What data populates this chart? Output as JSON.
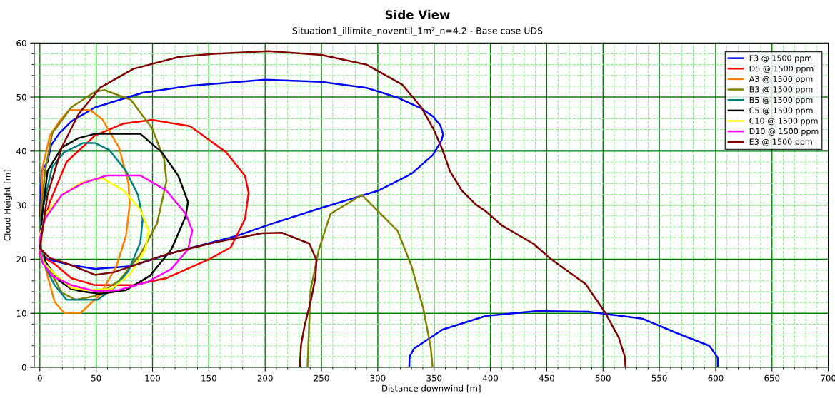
{
  "chart_data": {
    "type": "line",
    "title": "Side View",
    "subtitle": "Situation1_illimite_noventil_1m²_n=4.2 - Base case UDS",
    "xlabel": "Distance downwind [m]",
    "ylabel": "Cloud Height [m]",
    "xlim": [
      -5,
      700
    ],
    "ylim": [
      0,
      60
    ],
    "xticks": [
      0,
      {
        "value": 10,
        "label": null
      },
      {
        "value": 20,
        "label": null
      },
      {
        "value": 30,
        "label": null
      },
      {
        "value": 40,
        "label": null
      },
      50,
      {
        "value": 60,
        "label": null
      },
      {
        "value": 70,
        "label": null
      },
      {
        "value": 80,
        "label": null
      },
      {
        "value": 90,
        "label": null
      },
      100,
      {
        "value": 110,
        "label": null
      },
      {
        "value": 120,
        "label": null
      },
      {
        "value": 130,
        "label": null
      },
      {
        "value": 140,
        "label": null
      },
      150,
      {
        "value": 160,
        "label": null
      },
      {
        "value": 170,
        "label": null
      },
      {
        "value": 180,
        "label": null
      },
      {
        "value": 190,
        "label": null
      },
      200,
      {
        "value": 210,
        "label": null
      },
      {
        "value": 220,
        "label": null
      },
      {
        "value": 230,
        "label": null
      },
      {
        "value": 240,
        "label": null
      },
      250,
      {
        "value": 260,
        "label": null
      },
      {
        "value": 270,
        "label": null
      },
      {
        "value": 280,
        "label": null
      },
      {
        "value": 290,
        "label": null
      },
      300,
      {
        "value": 310,
        "label": null
      },
      {
        "value": 320,
        "label": null
      },
      {
        "value": 330,
        "label": null
      },
      {
        "value": 340,
        "label": null
      },
      350,
      {
        "value": 360,
        "label": null
      },
      {
        "value": 370,
        "label": null
      },
      {
        "value": 380,
        "label": null
      },
      {
        "value": 390,
        "label": null
      },
      400,
      {
        "value": 410,
        "label": null
      },
      {
        "value": 420,
        "label": null
      },
      {
        "value": 430,
        "label": null
      },
      {
        "value": 440,
        "label": null
      },
      450,
      {
        "value": 460,
        "label": null
      },
      {
        "value": 470,
        "label": null
      },
      {
        "value": 480,
        "label": null
      },
      {
        "value": 490,
        "label": null
      },
      500,
      {
        "value": 510,
        "label": null
      },
      {
        "value": 520,
        "label": null
      },
      {
        "value": 530,
        "label": null
      },
      {
        "value": 540,
        "label": null
      },
      550,
      {
        "value": 560,
        "label": null
      },
      {
        "value": 570,
        "label": null
      },
      {
        "value": 580,
        "label": null
      },
      {
        "value": 590,
        "label": null
      },
      600,
      {
        "value": 610,
        "label": null
      },
      {
        "value": 620,
        "label": null
      },
      {
        "value": 630,
        "label": null
      },
      {
        "value": 640,
        "label": null
      },
      650,
      {
        "value": 660,
        "label": null
      },
      {
        "value": 670,
        "label": null
      },
      {
        "value": 680,
        "label": null
      },
      {
        "value": 690,
        "label": null
      },
      700
    ],
    "yticks": [
      0,
      {
        "value": 2,
        "label": null
      },
      {
        "value": 4,
        "label": null
      },
      {
        "value": 6,
        "label": null
      },
      {
        "value": 8,
        "label": null
      },
      10,
      {
        "value": 12,
        "label": null
      },
      {
        "value": 14,
        "label": null
      },
      {
        "value": 16,
        "label": null
      },
      {
        "value": 18,
        "label": null
      },
      20,
      {
        "value": 22,
        "label": null
      },
      {
        "value": 24,
        "label": null
      },
      {
        "value": 26,
        "label": null
      },
      {
        "value": 28,
        "label": null
      },
      30,
      {
        "value": 32,
        "label": null
      },
      {
        "value": 34,
        "label": null
      },
      {
        "value": 36,
        "label": null
      },
      {
        "value": 38,
        "label": null
      },
      40,
      {
        "value": 42,
        "label": null
      },
      {
        "value": 44,
        "label": null
      },
      {
        "value": 46,
        "label": null
      },
      {
        "value": 48,
        "label": null
      },
      50,
      {
        "value": 52,
        "label": null
      },
      {
        "value": 54,
        "label": null
      },
      {
        "value": 56,
        "label": null
      },
      {
        "value": 58,
        "label": null
      },
      60
    ],
    "grid": true,
    "legend": "top right",
    "marker": "none",
    "line_style": "solid",
    "series": [
      {
        "name": "F3 @ 1500 ppm",
        "color": "#0000ff",
        "x": [
          0,
          0.5,
          1.5,
          6.8,
          10,
          17.3,
          27.9,
          49,
          91.3,
          133.6,
          200,
          249.8,
          290,
          317.5,
          338.6,
          349.2,
          355.5,
          358,
          null,
          0,
          2,
          6.8,
          27.9,
          49,
          80.7,
          123,
          175.8,
          205,
          249.8,
          300.6,
          330,
          349,
          356.6,
          358,
          null,
          328,
          328.3,
          332.3,
          357.6,
          395.7,
          440,
          486.5,
          535.2,
          564.8,
          594.4,
          601.8,
          601.8
        ],
        "values": [
          22,
          30,
          36.3,
          38,
          41.1,
          43.3,
          45.5,
          48.1,
          50.8,
          52.1,
          53.2,
          52.8,
          51.7,
          49.9,
          47.9,
          46.4,
          44.8,
          43.1,
          null,
          22,
          20.8,
          20,
          18.9,
          18.2,
          18.7,
          21.5,
          24.4,
          26.5,
          29.5,
          32.7,
          35.8,
          39.3,
          42,
          43.1,
          null,
          0.3,
          2,
          3.5,
          7,
          9.5,
          10.4,
          10.3,
          9,
          6.4,
          4,
          1.8,
          0.3
        ]
      },
      {
        "name": "D5 @ 1500 ppm",
        "color": "#ff0000",
        "x": [
          0,
          1.5,
          8.9,
          23.7,
          49,
          74.4,
          99.7,
          133.6,
          165.3,
          182.2,
          185.3,
          null,
          0,
          2.5,
          13.1,
          27.9,
          49,
          82.9,
          112.4,
          150.5,
          169.5,
          182.2,
          185.3
        ],
        "values": [
          21,
          25.3,
          30.6,
          38,
          42.9,
          45.1,
          45.8,
          44.6,
          39.8,
          35.4,
          32.3,
          null,
          21,
          20.4,
          19.1,
          16.5,
          15.2,
          15.2,
          16.5,
          20,
          22.2,
          27.5,
          32.3
        ]
      },
      {
        "name": "A3 @ 1500 ppm",
        "color": "#ff8000",
        "x": [
          0,
          2.5,
          8.9,
          17.3,
          25.8,
          44.8,
          55.4,
          70.2,
          78.6,
          79.7,
          null,
          0,
          2.5,
          5.7,
          13.1,
          21.6,
          36.3,
          53.3,
          68,
          76.5,
          79.7
        ],
        "values": [
          23,
          37.1,
          42.9,
          45.5,
          47.6,
          47.6,
          45.9,
          40.7,
          34.1,
          30.1,
          null,
          23,
          20.4,
          17.8,
          12.1,
          10.1,
          10.1,
          13.4,
          18.7,
          24.4,
          30.1
        ]
      },
      {
        "name": "B3 @ 1500 ppm",
        "color": "#808000",
        "x": [
          0,
          4.6,
          11,
          27.9,
          49,
          57.5,
          80.7,
          99.7,
          110.3,
          112.4,
          null,
          0,
          1.5,
          6.8,
          19.5,
          32.1,
          49,
          70.2,
          89.2,
          104,
          112.4,
          null,
          237.6,
          240.3,
          247.7,
          258,
          285.8,
          317.5,
          330,
          340.5,
          347,
          348.7
        ],
        "values": [
          26,
          36.3,
          43.3,
          48.1,
          51,
          51.3,
          49.5,
          44.2,
          38.5,
          34.5,
          null,
          26,
          21,
          18.7,
          13.8,
          12.5,
          13.2,
          16,
          20.9,
          26.6,
          34.5,
          null,
          0.2,
          14.3,
          21.8,
          28.4,
          31.9,
          25.3,
          18.7,
          10.8,
          3.7,
          0
        ]
      },
      {
        "name": "B5 @ 1500 ppm",
        "color": "#008080",
        "x": [
          0,
          1.5,
          11,
          21.6,
          38.5,
          49,
          61.7,
          76.5,
          87.1,
          91.3,
          null,
          0,
          1.5,
          3.6,
          13.1,
          23.7,
          51.2,
          65.9,
          78.6,
          89.2,
          91.3
        ],
        "values": [
          24,
          28.4,
          37.1,
          39.8,
          41.5,
          41.5,
          40.2,
          36.3,
          31.9,
          27.5,
          null,
          24,
          21,
          19.1,
          15.2,
          12.5,
          12.5,
          14.7,
          17.8,
          23.1,
          27.5
        ]
      },
      {
        "name": "C5 @ 1500 ppm",
        "color": "#000000",
        "x": [
          0,
          2,
          6.8,
          19.5,
          34.2,
          49,
          89.2,
          108.2,
          123,
          131.5,
          null,
          0,
          3.6,
          4.6,
          17.3,
          27.9,
          36.3,
          53.3,
          76.5,
          97.6,
          116.7,
          129.4,
          131.5
        ],
        "values": [
          22,
          28,
          36.3,
          40.7,
          42.4,
          43.2,
          43.2,
          39.8,
          35.4,
          30.6,
          null,
          22,
          21.2,
          19.6,
          16,
          14.5,
          14.1,
          13.6,
          14.3,
          16.9,
          21.8,
          27.9,
          30.6
        ]
      },
      {
        "name": "C10 @ 1500 ppm",
        "color": "#ffff00",
        "x": [
          0,
          6.8,
          19.5,
          36.3,
          55.4,
          74.4,
          89.2,
          96.6,
          null,
          0,
          1,
          4.6,
          15.2,
          27.9,
          40.6,
          63.8,
          80.7,
          93.4,
          96.6
        ],
        "values": [
          24.6,
          28.8,
          31.9,
          34.1,
          35,
          32.7,
          29.2,
          25.3,
          null,
          24.6,
          20.6,
          19.1,
          16.9,
          14.7,
          14.3,
          14.5,
          17.4,
          21.8,
          25.3
        ]
      },
      {
        "name": "D10 @ 1500 ppm",
        "color": "#ff00ff",
        "x": [
          0,
          4.6,
          19.5,
          38.5,
          59.6,
          89.2,
          112.4,
          129.4,
          135.3,
          null,
          0,
          0.5,
          2.5,
          11,
          27.9,
          49,
          70.2,
          95.6,
          116.7,
          131.5,
          135.3
        ],
        "values": [
          23.9,
          27.5,
          31.9,
          34.1,
          35.5,
          35.5,
          32.7,
          28.4,
          25.3,
          null,
          23.9,
          21,
          19.3,
          16.9,
          15.2,
          14.1,
          14.3,
          15.8,
          18.2,
          21.8,
          25.3
        ]
      },
      {
        "name": "E3 @ 1500 ppm",
        "color": "#800000",
        "x": [
          0,
          3.6,
          8.9,
          27.9,
          49,
          66,
          112.4,
          154.7,
          197,
          215,
          239.3,
          245.6,
          null,
          230.8,
          231.9,
          235,
          240.3,
          244.6,
          245.6,
          null,
          0,
          6.8,
          19.5,
          34.2,
          53.3,
          82.9,
          123,
          154.7,
          203,
          249.8,
          290,
          321.7,
          338.6,
          349.2,
          357.6,
          364,
          374.6,
          387.2,
          395.7,
          410.5,
          438,
          452.7,
          484.5,
          501.4,
          514,
          519.3,
          520
        ],
        "values": [
          22,
          21.3,
          20.2,
          18.9,
          17.1,
          17.6,
          20.9,
          23.1,
          24.8,
          24.9,
          22.9,
          19.8,
          null,
          0.3,
          4.2,
          7.7,
          12.1,
          16.5,
          19.8,
          null,
          22,
          31.9,
          40.7,
          46.8,
          51.7,
          55.2,
          57.4,
          58,
          58.5,
          57.8,
          56,
          52.3,
          48.1,
          44.2,
          40.2,
          36.3,
          32.7,
          30.1,
          28.9,
          26.2,
          22.9,
          20.2,
          15.4,
          10.3,
          5.5,
          2,
          0
        ]
      }
    ]
  }
}
